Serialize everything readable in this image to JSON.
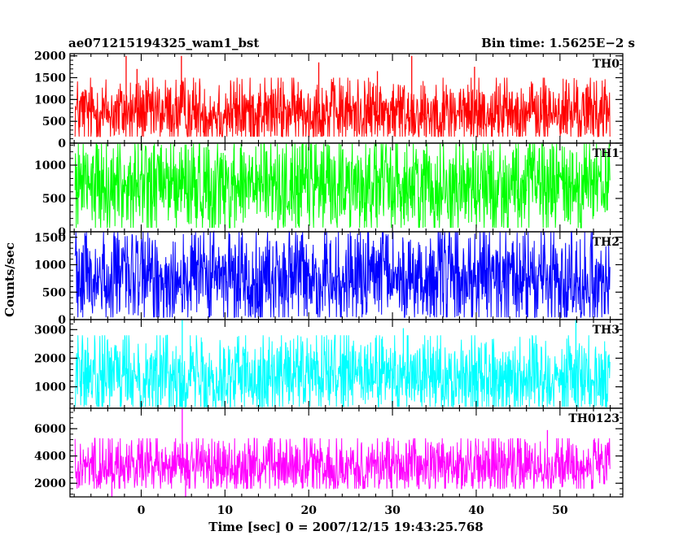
{
  "header": {
    "title_left": "ae071215194325_wam1_bst",
    "title_right": "Bin time: 1.5625E−2 s"
  },
  "chart_data": {
    "type": "line",
    "title": "ae071215194325_wam1_bst",
    "bin_time_label": "Bin time: 1.5625E−2 s",
    "xlabel": "Time [sec] 0 = 2007/12/15 19:43:25.768",
    "ylabel": "Counts/sec",
    "xlim": [
      -8.5,
      57.5
    ],
    "x_data_range": [
      -7.9,
      56.0
    ],
    "x_ticks": [
      0,
      10,
      20,
      30,
      40,
      50
    ],
    "x_tick_labels": [
      "0",
      "10",
      "20",
      "30",
      "40",
      "50"
    ],
    "panels": [
      {
        "label": "TH0",
        "color": "#ff0000",
        "ylim": [
          0,
          2050
        ],
        "y_ticks": [
          0,
          500,
          1000,
          1500,
          2000
        ],
        "y_tick_labels": [
          "0",
          "500",
          "1000",
          "1500",
          "2000"
        ],
        "mean": 700,
        "low": 150,
        "high": 1500,
        "spikes": [
          [
            -1.8,
            2000
          ],
          [
            -0.5,
            1700
          ],
          [
            4.8,
            2000
          ],
          [
            21.2,
            1850
          ],
          [
            32.3,
            2000
          ],
          [
            39.8,
            1750
          ],
          [
            28.2,
            1650
          ]
        ]
      },
      {
        "label": "TH1",
        "color": "#00ff00",
        "ylim": [
          0,
          1330
        ],
        "y_ticks": [
          0,
          500,
          1000
        ],
        "y_tick_labels": [
          "0",
          "500",
          "1000"
        ],
        "mean": 700,
        "low": 60,
        "high": 1320,
        "spikes": []
      },
      {
        "label": "TH2",
        "color": "#0000ff",
        "ylim": [
          0,
          1600
        ],
        "y_ticks": [
          0,
          500,
          1000,
          1500
        ],
        "y_tick_labels": [
          "0",
          "500",
          "1000",
          "1500"
        ],
        "mean": 760,
        "low": 40,
        "high": 1600,
        "spikes": []
      },
      {
        "label": "TH3",
        "color": "#00ffff",
        "ylim": [
          250,
          3350
        ],
        "y_ticks": [
          1000,
          2000,
          3000
        ],
        "y_tick_labels": [
          "1000",
          "2000",
          "3000"
        ],
        "mean": 1380,
        "low": 300,
        "high": 2800,
        "spikes": [
          [
            4.9,
            3350
          ],
          [
            51.9,
            3350
          ],
          [
            31.3,
            3050
          ]
        ]
      },
      {
        "label": "TH0123",
        "color": "#ff00ff",
        "ylim": [
          1000,
          7500
        ],
        "y_ticks": [
          2000,
          4000,
          6000
        ],
        "y_tick_labels": [
          "2000",
          "4000",
          "6000"
        ],
        "mean": 3300,
        "low": 1600,
        "high": 5300,
        "spikes": [
          [
            4.9,
            7500
          ],
          [
            -3.5,
            1000
          ],
          [
            5.3,
            1000
          ],
          [
            48.5,
            5900
          ]
        ]
      }
    ]
  }
}
